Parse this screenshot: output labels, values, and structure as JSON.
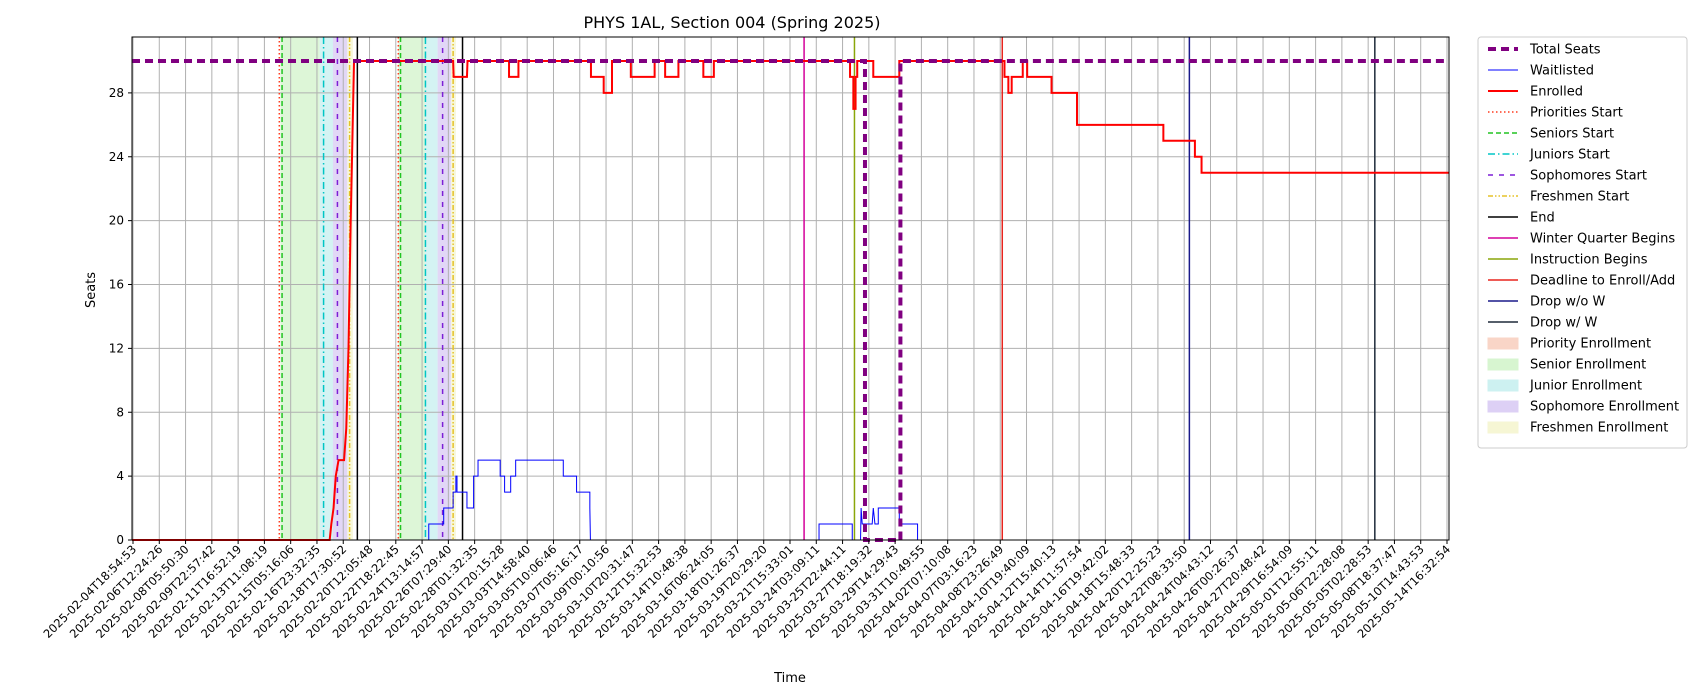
{
  "chart_data": {
    "type": "line",
    "title": "PHYS 1AL, Section 004 (Spring 2025)",
    "xlabel": "Time",
    "ylabel": "Seats",
    "ylim": [
      0,
      31.5
    ],
    "yticks": [
      0,
      4,
      8,
      12,
      16,
      20,
      24,
      28
    ],
    "grid": true,
    "legend_placement": "outside-right",
    "x_start": "2025-02-04T18:54:53",
    "x_end": "2025-05-14T22:00:00",
    "xtick_labels": [
      "2025-02-04T18:54:53",
      "2025-02-06T12:24:26",
      "2025-02-08T05:50:30",
      "2025-02-09T22:57:42",
      "2025-02-11T16:52:19",
      "2025-02-13T11:08:19",
      "2025-02-15T05:16:06",
      "2025-02-16T23:32:35",
      "2025-02-18T17:30:52",
      "2025-02-20T12:05:48",
      "2025-02-22T18:22:45",
      "2025-02-24T13:14:57",
      "2025-02-26T07:29:40",
      "2025-02-28T01:32:35",
      "2025-03-01T20:15:28",
      "2025-03-03T14:58:40",
      "2025-03-05T10:06:46",
      "2025-03-07T05:16:17",
      "2025-03-09T00:10:56",
      "2025-03-10T20:31:47",
      "2025-03-12T15:32:53",
      "2025-03-14T10:48:38",
      "2025-03-16T06:24:05",
      "2025-03-18T01:26:37",
      "2025-03-19T20:29:20",
      "2025-03-21T15:33:01",
      "2025-03-24T03:09:11",
      "2025-03-25T22:44:11",
      "2025-03-27T18:19:32",
      "2025-03-29T14:29:43",
      "2025-03-31T10:49:55",
      "2025-04-02T07:10:08",
      "2025-04-07T03:16:23",
      "2025-04-08T23:26:49",
      "2025-04-10T19:40:09",
      "2025-04-12T15:40:13",
      "2025-04-14T11:57:54",
      "2025-04-16T19:42:02",
      "2025-04-18T15:48:33",
      "2025-04-20T12:25:23",
      "2025-04-22T08:33:50",
      "2025-04-24T04:43:12",
      "2025-04-26T00:26:37",
      "2025-04-27T20:48:42",
      "2025-04-29T16:54:09",
      "2025-05-01T12:55:11",
      "2025-05-06T22:28:08",
      "2025-05-05T02:28:53",
      "2025-05-08T18:37:47",
      "2025-05-10T14:43:53",
      "2025-05-14T16:32:54"
    ],
    "legend": [
      {
        "label": "Total Seats",
        "kind": "line",
        "color": "#800080",
        "dash": "8,5",
        "width": 4
      },
      {
        "label": "Waitlisted",
        "kind": "line",
        "color": "#0000ff",
        "dash": "",
        "width": 1
      },
      {
        "label": "Enrolled",
        "kind": "line",
        "color": "#ff0000",
        "dash": "",
        "width": 2
      },
      {
        "label": "Priorities Start",
        "kind": "line",
        "color": "#ff3b1f",
        "dash": "1.5,2.5",
        "width": 1.5
      },
      {
        "label": "Seniors Start",
        "kind": "line",
        "color": "#22c422",
        "dash": "5,3",
        "width": 1.5
      },
      {
        "label": "Juniors Start",
        "kind": "line",
        "color": "#00c5c5",
        "dash": "7,3,1.5,3",
        "width": 1.5
      },
      {
        "label": "Sophomores Start",
        "kind": "line",
        "color": "#7d1fd6",
        "dash": "5,6",
        "width": 1.5
      },
      {
        "label": "Freshmen Start",
        "kind": "line",
        "color": "#e6c229",
        "dash": "5,2,1.5,2,1.5,2",
        "width": 1.5
      },
      {
        "label": "End",
        "kind": "line",
        "color": "#000000",
        "dash": "",
        "width": 1.5
      },
      {
        "label": "Winter Quarter Begins",
        "kind": "line",
        "color": "#d4009a",
        "dash": "",
        "width": 1.5
      },
      {
        "label": "Instruction Begins",
        "kind": "line",
        "color": "#8aa60a",
        "dash": "",
        "width": 1.5
      },
      {
        "label": "Deadline to Enroll/Add",
        "kind": "line",
        "color": "#e8251e",
        "dash": "",
        "width": 1.5
      },
      {
        "label": "Drop w/o W",
        "kind": "line",
        "color": "#1a1a8a",
        "dash": "",
        "width": 1.5
      },
      {
        "label": "Drop w/ W",
        "kind": "line",
        "color": "#1e2a3a",
        "dash": "",
        "width": 1.5
      },
      {
        "label": "Priority Enrollment",
        "kind": "patch",
        "color": "#f9d5c7"
      },
      {
        "label": "Senior Enrollment",
        "kind": "patch",
        "color": "#d7f5d0"
      },
      {
        "label": "Junior Enrollment",
        "kind": "patch",
        "color": "#cdf1f1"
      },
      {
        "label": "Sophomore Enrollment",
        "kind": "patch",
        "color": "#ddd0f5"
      },
      {
        "label": "Freshmen Enrollment",
        "kind": "patch",
        "color": "#f6f6d4"
      }
    ],
    "spans": [
      {
        "label": "Senior Enrollment",
        "color": "#d7f5d0",
        "x0": "2025-02-15T23:00:00",
        "x1": "2025-02-18T22:00:00"
      },
      {
        "label": "Junior Enrollment",
        "color": "#cdf1f1",
        "x0": "2025-02-18T22:00:00",
        "x1": "2025-02-19T22:00:00"
      },
      {
        "label": "Sophomore Enrollment",
        "color": "#ddd0f5",
        "x0": "2025-02-19T22:00:00",
        "x1": "2025-02-21T00:00:00"
      },
      {
        "label": "Freshmen Enrollment",
        "color": "#f6f6d4",
        "x0": "2025-02-21T00:00:00",
        "x1": "2025-02-21T10:00:00"
      },
      {
        "label": "Senior Enrollment",
        "color": "#d7f5d0",
        "x0": "2025-02-24T20:00:00",
        "x1": "2025-02-26T20:00:00"
      },
      {
        "label": "Junior Enrollment",
        "color": "#cdf1f1",
        "x0": "2025-02-26T20:00:00",
        "x1": "2025-02-27T19:00:00"
      },
      {
        "label": "Sophomore Enrollment",
        "color": "#ddd0f5",
        "x0": "2025-02-27T19:00:00",
        "x1": "2025-02-28T19:00:00"
      },
      {
        "label": "Freshmen Enrollment",
        "color": "#f6f6d4",
        "x0": "2025-02-28T19:00:00",
        "x1": "2025-03-01T04:00:00"
      }
    ],
    "vlines": [
      {
        "label": "Priorities Start",
        "x": "2025-02-15T21:00:00"
      },
      {
        "label": "Seniors Start",
        "x": "2025-02-16T02:00:00"
      },
      {
        "label": "Juniors Start",
        "x": "2025-02-19T05:00:00"
      },
      {
        "label": "Sophomores Start",
        "x": "2025-02-20T06:00:00"
      },
      {
        "label": "Freshmen Start",
        "x": "2025-02-21T04:00:00"
      },
      {
        "label": "End",
        "x": "2025-02-21T18:00:00"
      },
      {
        "label": "Priorities Start",
        "x": "2025-02-24T20:00:00"
      },
      {
        "label": "Seniors Start",
        "x": "2025-02-25T00:00:00"
      },
      {
        "label": "Juniors Start",
        "x": "2025-02-26T21:00:00"
      },
      {
        "label": "Sophomores Start",
        "x": "2025-02-28T04:00:00"
      },
      {
        "label": "Freshmen Start",
        "x": "2025-02-28T23:00:00"
      },
      {
        "label": "End",
        "x": "2025-03-01T16:00:00"
      },
      {
        "label": "Winter Quarter Begins",
        "x": "2025-03-27T09:00:00"
      },
      {
        "label": "Instruction Begins",
        "x": "2025-03-31T04:00:00"
      },
      {
        "label": "Deadline to Enroll/Add",
        "x": "2025-04-11T07:00:00"
      },
      {
        "label": "Drop w/o W",
        "x": "2025-04-25T09:00:00"
      },
      {
        "label": "Drop w/ W",
        "x": "2025-05-09T08:00:00"
      }
    ],
    "series": [
      {
        "name": "Total Seats",
        "points": [
          [
            "2025-02-04T18:54:53",
            30
          ],
          [
            "2025-03-31T23:00:00",
            30
          ],
          [
            "2025-03-31T23:00:00",
            0
          ],
          [
            "2025-04-03T15:00:00",
            0
          ],
          [
            "2025-04-03T15:00:00",
            30
          ],
          [
            "2025-05-14T22:00:00",
            30
          ]
        ]
      },
      {
        "name": "Enrolled",
        "points": [
          [
            "2025-02-04T18:54:53",
            0
          ],
          [
            "2025-02-19T16:00:00",
            0
          ],
          [
            "2025-02-19T19:00:00",
            1
          ],
          [
            "2025-02-19T23:00:00",
            2
          ],
          [
            "2025-02-20T03:00:00",
            4
          ],
          [
            "2025-02-20T08:00:00",
            5
          ],
          [
            "2025-02-20T18:00:00",
            5
          ],
          [
            "2025-02-20T22:00:00",
            7
          ],
          [
            "2025-02-21T02:00:00",
            12
          ],
          [
            "2025-02-21T06:00:00",
            20
          ],
          [
            "2025-02-21T12:00:00",
            30
          ],
          [
            "2025-02-28T23:00:00",
            30
          ],
          [
            "2025-03-01T00:00:00",
            29
          ],
          [
            "2025-03-02T00:00:00",
            29
          ],
          [
            "2025-03-02T01:00:00",
            30
          ],
          [
            "2025-03-05T04:00:00",
            30
          ],
          [
            "2025-03-05T04:00:00",
            29
          ],
          [
            "2025-03-05T21:00:00",
            29
          ],
          [
            "2025-03-05T21:00:00",
            30
          ],
          [
            "2025-03-11T08:00:00",
            30
          ],
          [
            "2025-03-11T08:00:00",
            29
          ],
          [
            "2025-03-12T07:00:00",
            29
          ],
          [
            "2025-03-12T07:00:00",
            28
          ],
          [
            "2025-03-12T22:00:00",
            28
          ],
          [
            "2025-03-12T22:00:00",
            30
          ],
          [
            "2025-03-14T08:00:00",
            30
          ],
          [
            "2025-03-14T08:00:00",
            29
          ],
          [
            "2025-03-16T03:00:00",
            29
          ],
          [
            "2025-03-16T03:00:00",
            30
          ],
          [
            "2025-03-16T22:00:00",
            30
          ],
          [
            "2025-03-16T22:00:00",
            29
          ],
          [
            "2025-03-17T22:00:00",
            29
          ],
          [
            "2025-03-17T22:00:00",
            30
          ],
          [
            "2025-03-19T19:00:00",
            30
          ],
          [
            "2025-03-19T19:00:00",
            29
          ],
          [
            "2025-03-20T14:00:00",
            29
          ],
          [
            "2025-03-20T14:00:00",
            30
          ],
          [
            "2025-03-30T20:00:00",
            30
          ],
          [
            "2025-03-30T20:00:00",
            29
          ],
          [
            "2025-03-31T02:00:00",
            29
          ],
          [
            "2025-03-31T02:00:00",
            27
          ],
          [
            "2025-03-31T06:00:00",
            27
          ],
          [
            "2025-03-31T06:00:00",
            29
          ],
          [
            "2025-03-31T09:00:00",
            29
          ],
          [
            "2025-03-31T09:00:00",
            30
          ],
          [
            "2025-04-01T14:00:00",
            30
          ],
          [
            "2025-04-01T14:00:00",
            29
          ],
          [
            "2025-04-03T13:00:00",
            29
          ],
          [
            "2025-04-03T13:00:00",
            30
          ],
          [
            "2025-04-11T11:00:00",
            30
          ],
          [
            "2025-04-11T11:00:00",
            29
          ],
          [
            "2025-04-11T18:00:00",
            29
          ],
          [
            "2025-04-11T18:00:00",
            28
          ],
          [
            "2025-04-12T00:00:00",
            28
          ],
          [
            "2025-04-12T00:00:00",
            29
          ],
          [
            "2025-04-12T20:00:00",
            29
          ],
          [
            "2025-04-12T20:00:00",
            30
          ],
          [
            "2025-04-13T04:00:00",
            30
          ],
          [
            "2025-04-13T04:00:00",
            29
          ],
          [
            "2025-04-15T00:00:00",
            29
          ],
          [
            "2025-04-15T00:00:00",
            28
          ],
          [
            "2025-04-16T22:00:00",
            28
          ],
          [
            "2025-04-16T22:00:00",
            26
          ],
          [
            "2025-04-23T10:00:00",
            26
          ],
          [
            "2025-04-23T10:00:00",
            25
          ],
          [
            "2025-04-25T19:00:00",
            25
          ],
          [
            "2025-04-25T19:00:00",
            24
          ],
          [
            "2025-04-26T07:00:00",
            24
          ],
          [
            "2025-04-26T07:00:00",
            23
          ],
          [
            "2025-05-14T22:00:00",
            23
          ]
        ]
      },
      {
        "name": "Waitlisted",
        "points": [
          [
            "2025-02-24T00:00:00",
            0
          ],
          [
            "2025-02-27T03:00:00",
            0
          ],
          [
            "2025-02-27T03:00:00",
            1
          ],
          [
            "2025-02-28T06:00:00",
            1
          ],
          [
            "2025-02-28T06:00:00",
            2
          ],
          [
            "2025-02-28T23:00:00",
            2
          ],
          [
            "2025-02-28T23:00:00",
            3
          ],
          [
            "2025-03-01T04:00:00",
            3
          ],
          [
            "2025-03-01T04:00:00",
            4
          ],
          [
            "2025-03-01T06:00:00",
            4
          ],
          [
            "2025-03-01T06:00:00",
            3
          ],
          [
            "2025-03-02T00:00:00",
            3
          ],
          [
            "2025-03-02T00:00:00",
            2
          ],
          [
            "2025-03-02T12:00:00",
            2
          ],
          [
            "2025-03-02T12:00:00",
            4
          ],
          [
            "2025-03-02T20:00:00",
            4
          ],
          [
            "2025-03-02T20:00:00",
            5
          ],
          [
            "2025-03-04T12:00:00",
            5
          ],
          [
            "2025-03-04T12:00:00",
            4
          ],
          [
            "2025-03-04T20:00:00",
            4
          ],
          [
            "2025-03-04T20:00:00",
            3
          ],
          [
            "2025-03-05T07:00:00",
            3
          ],
          [
            "2025-03-05T07:00:00",
            4
          ],
          [
            "2025-03-05T16:00:00",
            4
          ],
          [
            "2025-03-05T16:00:00",
            5
          ],
          [
            "2025-03-09T06:00:00",
            5
          ],
          [
            "2025-03-09T06:00:00",
            4
          ],
          [
            "2025-03-10T06:00:00",
            4
          ],
          [
            "2025-03-10T06:00:00",
            3
          ],
          [
            "2025-03-11T06:00:00",
            3
          ],
          [
            "2025-03-11T06:00:00",
            2
          ],
          [
            "2025-03-11T07:00:00",
            0
          ],
          [
            "2025-03-27T12:00:00",
            0
          ],
          [
            "2025-03-28T12:00:00",
            0
          ],
          [
            "2025-03-28T12:00:00",
            1
          ],
          [
            "2025-03-31T00:00:00",
            1
          ],
          [
            "2025-03-31T00:00:00",
            0
          ],
          [
            "2025-03-31T15:00:00",
            0
          ],
          [
            "2025-03-31T16:00:00",
            2
          ],
          [
            "2025-03-31T18:00:00",
            1
          ],
          [
            "2025-04-01T12:00:00",
            1
          ],
          [
            "2025-04-01T14:00:00",
            2
          ],
          [
            "2025-04-01T17:00:00",
            1
          ],
          [
            "2025-04-01T23:00:00",
            1
          ],
          [
            "2025-04-01T23:00:00",
            2
          ],
          [
            "2025-04-03T13:00:00",
            2
          ],
          [
            "2025-04-03T13:00:00",
            1
          ],
          [
            "2025-04-04T22:00:00",
            1
          ],
          [
            "2025-04-04T22:00:00",
            0
          ],
          [
            "2025-05-14T22:00:00",
            0
          ]
        ]
      }
    ]
  }
}
